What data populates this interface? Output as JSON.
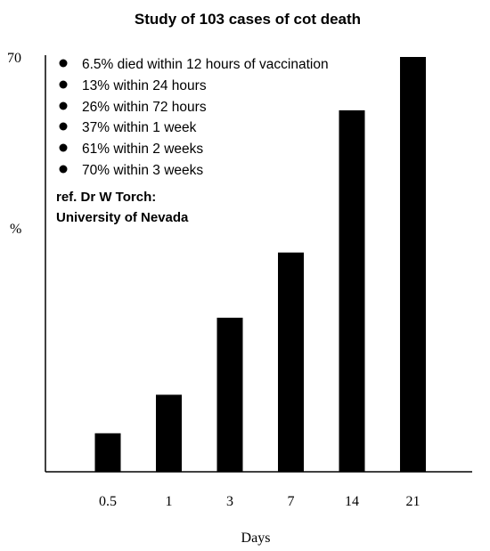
{
  "chart_data": {
    "type": "bar",
    "title": "Study of 103 cases of cot death",
    "xlabel": "Days",
    "ylabel": "%",
    "ytick_labels": [
      "70"
    ],
    "ylim": [
      0,
      70
    ],
    "categories": [
      "0.5",
      "1",
      "3",
      "7",
      "14",
      "21"
    ],
    "values": [
      6.5,
      13,
      26,
      37,
      61,
      70
    ],
    "bar_color": "#000000",
    "grid": false,
    "legend_notes": [
      "6.5% died within 12 hours of vaccination",
      "13% within 24 hours",
      "26% within 72 hours",
      "37% within 1 week",
      "61% within 2 weeks",
      "70% within 3 weeks"
    ],
    "reference": [
      "ref. Dr W Torch:",
      "University of Nevada"
    ]
  }
}
